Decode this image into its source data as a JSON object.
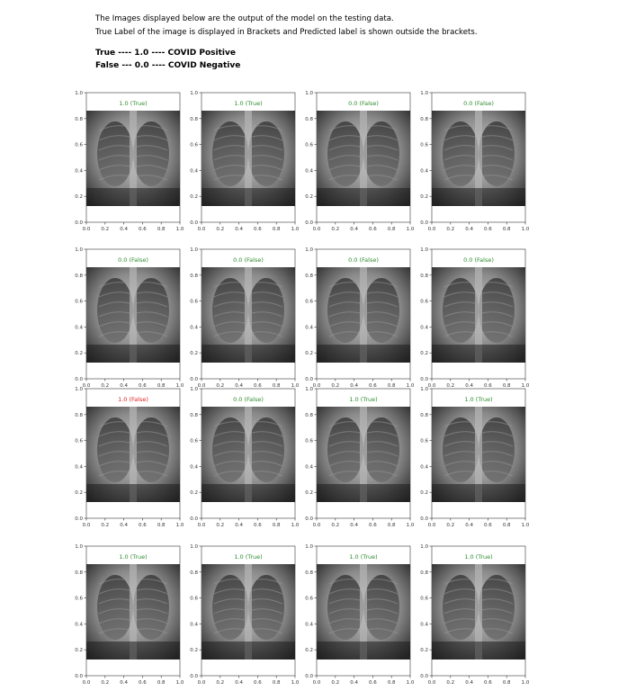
{
  "header": {
    "line1": "The Images displayed below are the output of the model on the testing data.",
    "line2": "True Label of the image is displayed in Brackets and Predicted label is shown outside the brackets."
  },
  "legend": {
    "true_line": "True ---- 1.0 ---- COVID Positive",
    "false_line": "False --- 0.0 ---- COVID Negative"
  },
  "axes": {
    "ticks": [
      "0.0",
      "0.2",
      "0.4",
      "0.6",
      "0.8",
      "1.0"
    ]
  },
  "colors": {
    "correct": "#2e8b2e",
    "incorrect": "#e02020"
  },
  "panels": [
    {
      "label": "1.0 (True)",
      "correct": true
    },
    {
      "label": "1.0 (True)",
      "correct": true
    },
    {
      "label": "0.0 (False)",
      "correct": true
    },
    {
      "label": "0.0 (False)",
      "correct": true
    },
    {
      "label": "0.0 (False)",
      "correct": true
    },
    {
      "label": "0.0 (False)",
      "correct": true
    },
    {
      "label": "0.0 (False)",
      "correct": true
    },
    {
      "label": "0.0 (False)",
      "correct": true
    },
    {
      "label": "1.0 (False)",
      "correct": false
    },
    {
      "label": "0.0 (False)",
      "correct": true
    },
    {
      "label": "1.0 (True)",
      "correct": true
    },
    {
      "label": "1.0 (True)",
      "correct": true
    },
    {
      "label": "1.0 (True)",
      "correct": true
    },
    {
      "label": "1.0 (True)",
      "correct": true
    },
    {
      "label": "1.0 (True)",
      "correct": true
    },
    {
      "label": "1.0 (True)",
      "correct": true
    }
  ]
}
